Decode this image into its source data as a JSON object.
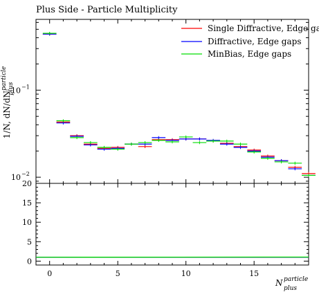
{
  "chart_data": [
    {
      "type": "line",
      "title": "Plus Side - Particle Multiplicity",
      "ylabel": "1/N, dN/dN",
      "ylabel_sup": "particle",
      "ylabel_sub": "plus",
      "yscale": "log",
      "ylim": [
        0.0085,
        0.65
      ],
      "xlim": [
        -1,
        19
      ],
      "yticks": [
        {
          "value": 0.1,
          "label": "10",
          "exp": "−1"
        },
        {
          "value": 0.01,
          "label": "10",
          "exp": "−2"
        }
      ],
      "legend_position": "top-right",
      "series": [
        {
          "name": "Single Diffractive, Edge gaps",
          "color": "#ff0000",
          "x": [
            0,
            1,
            2,
            3,
            4,
            5,
            6,
            7,
            8,
            9,
            10,
            11,
            12,
            13,
            14,
            15,
            16,
            17,
            18,
            19
          ],
          "values": [
            0.44,
            0.043,
            0.03,
            0.024,
            0.0215,
            0.022,
            0.024,
            0.0225,
            0.027,
            0.027,
            0.0275,
            0.0275,
            0.026,
            0.0245,
            0.0225,
            0.0205,
            0.0175,
            0.0155,
            0.013,
            0.011
          ]
        },
        {
          "name": "Diffractive, Edge gaps",
          "color": "#0000ff",
          "x": [
            0,
            1,
            2,
            3,
            4,
            5,
            6,
            7,
            8,
            9,
            10,
            11,
            12,
            13,
            14,
            15,
            16,
            17,
            18,
            19
          ],
          "values": [
            0.44,
            0.042,
            0.0295,
            0.0235,
            0.021,
            0.0215,
            0.024,
            0.024,
            0.0285,
            0.0265,
            0.0275,
            0.0275,
            0.0265,
            0.024,
            0.022,
            0.02,
            0.017,
            0.0155,
            0.0125,
            0.0105
          ]
        },
        {
          "name": "MinBias, Edge gaps",
          "color": "#00dd00",
          "x": [
            0,
            1,
            2,
            3,
            4,
            5,
            6,
            7,
            8,
            9,
            10,
            11,
            12,
            13,
            14,
            15,
            16,
            17,
            18,
            19
          ],
          "values": [
            0.45,
            0.0445,
            0.0285,
            0.025,
            0.022,
            0.021,
            0.024,
            0.025,
            0.0265,
            0.0255,
            0.029,
            0.025,
            0.026,
            0.026,
            0.024,
            0.0195,
            0.0165,
            0.015,
            0.0145,
            0.0105
          ]
        }
      ]
    },
    {
      "type": "line",
      "xlabel": "N",
      "xlabel_sup": "particle",
      "xlabel_sub": "plus",
      "ylim": [
        -1,
        20
      ],
      "xlim": [
        -1,
        19
      ],
      "yticks": [
        0,
        5,
        10,
        15,
        20
      ],
      "xticks": [
        0,
        5,
        10,
        15
      ],
      "series": [
        {
          "name": "Single Diffractive, Edge gaps",
          "color": "#ff0000",
          "x": [
            -1,
            19
          ],
          "values": [
            1.0,
            1.0
          ]
        },
        {
          "name": "Diffractive, Edge gaps",
          "color": "#0000ff",
          "x": [
            -1,
            19
          ],
          "values": [
            1.0,
            1.0
          ]
        },
        {
          "name": "MinBias, Edge gaps",
          "color": "#00dd00",
          "x": [
            -1,
            19
          ],
          "values": [
            1.0,
            1.05
          ]
        }
      ]
    }
  ]
}
